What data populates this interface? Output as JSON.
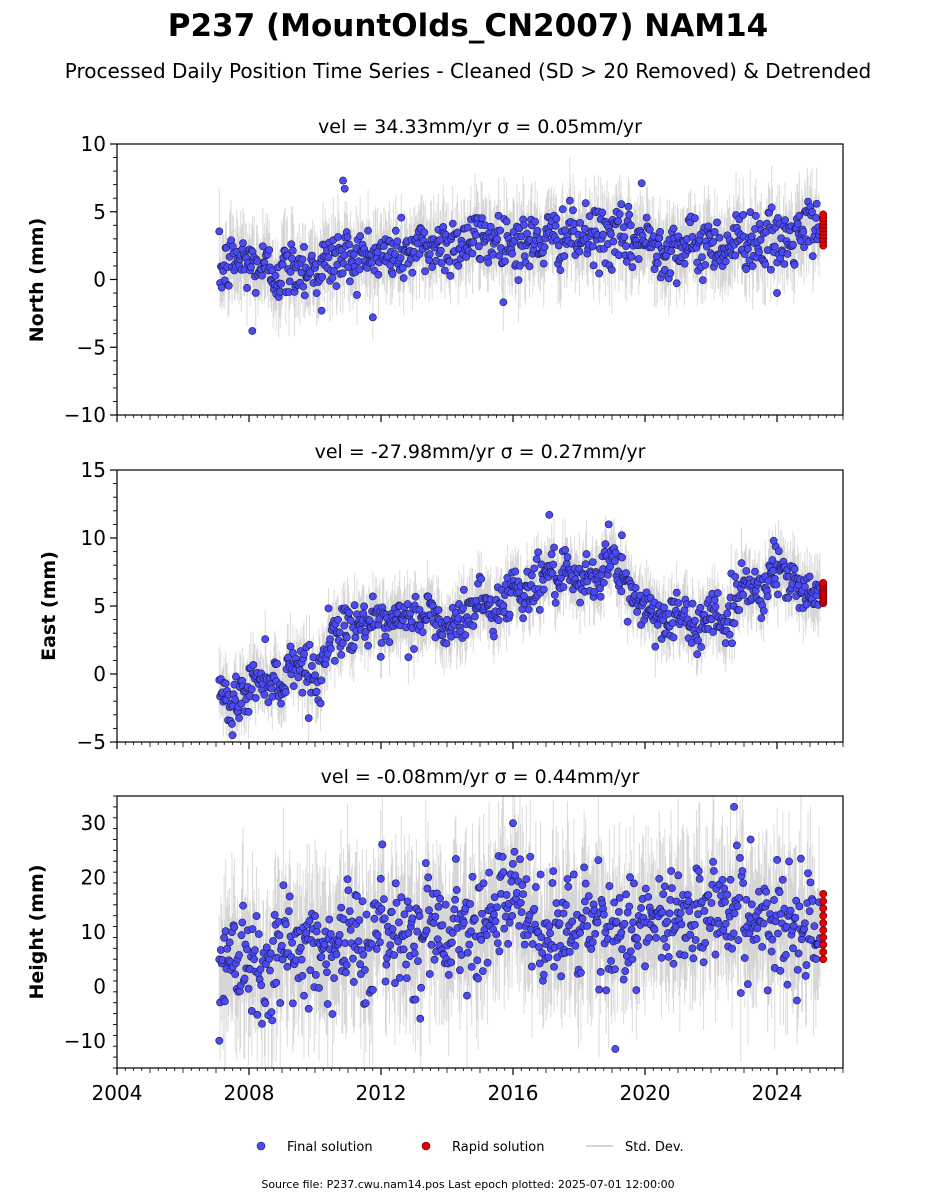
{
  "figure": {
    "title": "P237 (MountOlds_CN2007) NAM14",
    "subtitle": "Processed Daily Position Time Series - Cleaned (SD > 20 Removed) & Detrended",
    "footer": "Source file: P237.cwu.nam14.pos  Last epoch plotted: 2025-07-01 12:00:00",
    "colors": {
      "final": "#4b4bf5",
      "final_edge": "#1a1a4a",
      "rapid": "#e60000",
      "std": "#9a9a9a"
    }
  },
  "chart_data": [
    {
      "type": "scatter",
      "panel": "north",
      "title": "vel = 34.33mm/yr   σ = 0.05mm/yr",
      "ylabel": "North (mm)",
      "xlabel": "",
      "xlim": [
        2004,
        2026
      ],
      "ylim": [
        -10,
        10
      ],
      "yticks": [
        -10,
        -5,
        0,
        5,
        10
      ],
      "xticks": [
        2004,
        2008,
        2012,
        2016,
        2020,
        2024
      ],
      "show_xtick_labels": false,
      "series": [
        {
          "name": "Final solution",
          "x": [
            2007.1,
            2007.6,
            2008.0,
            2008.5,
            2009.0,
            2009.5,
            2010.0,
            2010.5,
            2011.0,
            2011.5,
            2012.0,
            2012.5,
            2013.0,
            2013.5,
            2014.0,
            2014.5,
            2015.0,
            2015.5,
            2016.0,
            2016.5,
            2017.0,
            2017.5,
            2018.0,
            2018.5,
            2019.0,
            2019.5,
            2020.0,
            2020.5,
            2021.0,
            2021.5,
            2022.0,
            2022.5,
            2023.0,
            2023.5,
            2024.0,
            2024.5,
            2025.0
          ],
          "y": [
            0.5,
            1.5,
            1.2,
            0.8,
            0.4,
            1.0,
            0.8,
            1.4,
            1.8,
            1.6,
            1.7,
            2.0,
            2.1,
            2.4,
            2.6,
            2.8,
            3.0,
            3.1,
            2.7,
            2.6,
            2.9,
            3.3,
            3.0,
            3.2,
            3.1,
            2.8,
            2.9,
            2.4,
            2.5,
            2.3,
            2.7,
            2.4,
            3.1,
            3.0,
            2.6,
            3.0,
            3.8
          ]
        },
        {
          "name": "Rapid solution",
          "x": [
            2025.4
          ],
          "y": [
            3.5
          ],
          "y_range": [
            2.5,
            4.8
          ]
        }
      ],
      "scatter_sd": 1.1,
      "outliers": [
        [
          2010.85,
          7.3
        ],
        [
          2010.9,
          6.7
        ],
        [
          2008.1,
          -3.8
        ],
        [
          2010.2,
          -2.3
        ],
        [
          2019.9,
          7.1
        ],
        [
          2024.0,
          -1.0
        ]
      ]
    },
    {
      "type": "scatter",
      "panel": "east",
      "title": "vel = -27.98mm/yr   σ = 0.27mm/yr",
      "ylabel": "East (mm)",
      "xlabel": "",
      "xlim": [
        2004,
        2026
      ],
      "ylim": [
        -5,
        15
      ],
      "yticks": [
        -5,
        0,
        5,
        10,
        15
      ],
      "xticks": [
        2004,
        2008,
        2012,
        2016,
        2020,
        2024
      ],
      "show_xtick_labels": false,
      "series": [
        {
          "name": "Final solution",
          "x": [
            2007.1,
            2007.4,
            2007.8,
            2008.2,
            2008.6,
            2009.0,
            2009.3,
            2009.7,
            2010.1,
            2010.5,
            2011.0,
            2011.5,
            2012.0,
            2012.5,
            2013.0,
            2013.5,
            2014.0,
            2014.5,
            2015.0,
            2015.5,
            2016.0,
            2016.5,
            2017.0,
            2017.5,
            2018.0,
            2018.5,
            2019.0,
            2019.5,
            2020.0,
            2020.5,
            2021.0,
            2021.5,
            2022.0,
            2022.5,
            2023.0,
            2023.5,
            2024.0,
            2024.5,
            2025.0
          ],
          "y": [
            -1.0,
            -2.5,
            -1.5,
            -0.5,
            0.0,
            -1.0,
            1.0,
            0.5,
            -0.5,
            3.0,
            3.5,
            4.0,
            3.0,
            3.8,
            4.0,
            4.5,
            3.0,
            4.2,
            5.5,
            4.5,
            6.5,
            6.0,
            7.5,
            7.0,
            6.5,
            7.2,
            8.5,
            6.0,
            5.0,
            4.0,
            4.5,
            3.0,
            5.0,
            3.5,
            7.0,
            6.0,
            8.0,
            6.5,
            6.2
          ]
        },
        {
          "name": "Rapid solution",
          "x": [
            2025.4
          ],
          "y": [
            6.0
          ],
          "y_range": [
            5.2,
            6.7
          ]
        }
      ],
      "scatter_sd": 0.9,
      "outliers": [
        [
          2017.1,
          11.7
        ],
        [
          2018.9,
          11.0
        ],
        [
          2019.3,
          10.2
        ],
        [
          2023.9,
          9.8
        ],
        [
          2007.5,
          -4.5
        ]
      ]
    },
    {
      "type": "scatter",
      "panel": "height",
      "title": "vel = -0.08mm/yr   σ = 0.44mm/yr",
      "ylabel": "Height (mm)",
      "xlabel": "",
      "xlim": [
        2004,
        2026
      ],
      "ylim": [
        -15,
        35
      ],
      "yticks": [
        -10,
        0,
        10,
        20,
        30
      ],
      "xticks": [
        2004,
        2008,
        2012,
        2016,
        2020,
        2024
      ],
      "show_xtick_labels": true,
      "series": [
        {
          "name": "Final solution",
          "x": [
            2007.1,
            2007.5,
            2008.0,
            2008.5,
            2009.0,
            2009.5,
            2010.0,
            2010.5,
            2011.0,
            2011.5,
            2012.0,
            2012.5,
            2013.0,
            2013.5,
            2014.0,
            2014.5,
            2015.0,
            2015.5,
            2016.0,
            2016.5,
            2017.0,
            2017.5,
            2018.0,
            2018.5,
            2019.0,
            2019.5,
            2020.0,
            2020.5,
            2021.0,
            2021.5,
            2022.0,
            2022.5,
            2023.0,
            2023.5,
            2024.0,
            2024.5,
            2025.0
          ],
          "y": [
            3.0,
            8.0,
            6.0,
            4.0,
            8.0,
            5.0,
            9.0,
            6.0,
            10.0,
            7.0,
            10.0,
            11.0,
            9.0,
            12.0,
            10.0,
            11.0,
            14.0,
            13.0,
            16.0,
            12.0,
            8.0,
            12.0,
            10.0,
            11.0,
            9.0,
            12.0,
            10.0,
            11.0,
            13.0,
            14.0,
            15.0,
            14.0,
            13.0,
            11.0,
            10.0,
            12.0,
            13.0
          ]
        },
        {
          "name": "Rapid solution",
          "x": [
            2025.4
          ],
          "y": [
            11.0
          ],
          "y_range": [
            5.0,
            17.0
          ]
        }
      ],
      "scatter_sd": 5.0,
      "outliers": [
        [
          2007.1,
          -10.0
        ],
        [
          2019.1,
          -11.5
        ],
        [
          2016.0,
          30.0
        ],
        [
          2022.7,
          33.0
        ],
        [
          2023.2,
          27.0
        ]
      ]
    }
  ],
  "legend": {
    "placement": "bottom-center",
    "items": [
      {
        "label": "Final solution",
        "marker": "dot",
        "color": "#4b4bf5"
      },
      {
        "label": "Rapid solution",
        "marker": "dot",
        "color": "#e60000"
      },
      {
        "label": "Std. Dev.",
        "marker": "line",
        "color": "#c8c8c8"
      }
    ]
  }
}
